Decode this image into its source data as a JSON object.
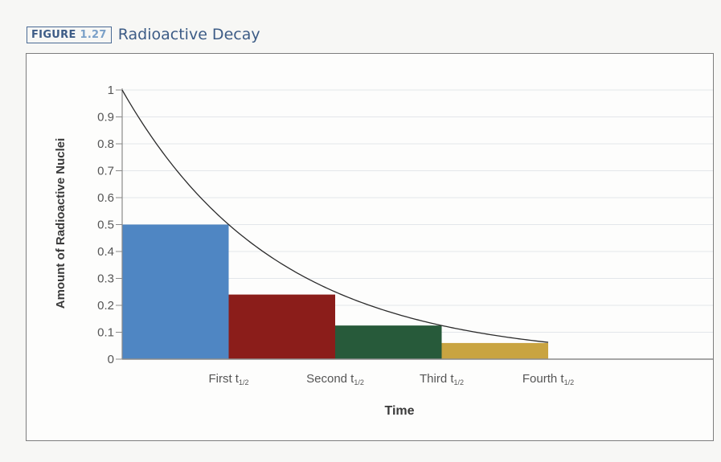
{
  "figure": {
    "label_prefix": "FIGURE",
    "label_number": "1.27",
    "title": "Radioactive Decay"
  },
  "chart_data": {
    "type": "bar",
    "categories": [
      "First t1/2",
      "Second t1/2",
      "Third t1/2",
      "Fourth t1/2"
    ],
    "category_labels": [
      {
        "main": "First t",
        "sub": "1/2"
      },
      {
        "main": "Second t",
        "sub": "1/2"
      },
      {
        "main": "Third t",
        "sub": "1/2"
      },
      {
        "main": "Fourth t",
        "sub": "1/2"
      }
    ],
    "values": [
      0.5,
      0.24,
      0.125,
      0.06
    ],
    "bar_colors": [
      "#4f86c3",
      "#8b1d1a",
      "#275a3a",
      "#c9a441"
    ],
    "curve": {
      "type": "exponential-decay",
      "start": 1,
      "half_life_intervals": 1,
      "end_interval": 4
    },
    "yticks": [
      0,
      0.1,
      0.2,
      0.3,
      0.4,
      0.5,
      0.6,
      0.7,
      0.8,
      0.9,
      1
    ],
    "ylim": [
      0,
      1
    ],
    "xlim": [
      0,
      5.25
    ],
    "xlabel": "Time",
    "ylabel": "Amount of Radioactive Nuclei",
    "grid": true,
    "legend": "none"
  }
}
